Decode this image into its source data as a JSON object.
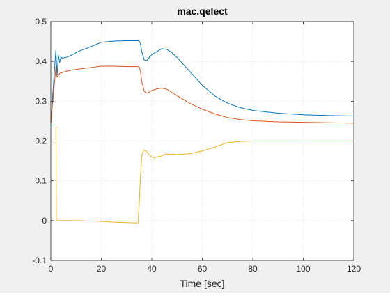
{
  "window": {
    "background": "#f0f0f0"
  },
  "chart_data": {
    "type": "line",
    "title": "mac.qelect",
    "xlabel": "Time [sec]",
    "ylabel": "",
    "xlim": [
      0,
      120
    ],
    "ylim": [
      -0.1,
      0.5
    ],
    "xticks": [
      "0",
      "20",
      "40",
      "60",
      "80",
      "100",
      "120"
    ],
    "yticks": [
      "-0.1",
      "0",
      "0.1",
      "0.2",
      "0.3",
      "0.4",
      "0.5"
    ],
    "xtick_values": [
      0,
      20,
      40,
      60,
      80,
      100,
      120
    ],
    "ytick_values": [
      -0.1,
      0,
      0.1,
      0.2,
      0.3,
      0.4,
      0.5
    ],
    "grid": true,
    "legend": "none",
    "series": [
      {
        "color": "#0072bd",
        "x": [
          0,
          0.5,
          1.0,
          1.5,
          2.0,
          2.5,
          3.0,
          3.5,
          4.0,
          4.5,
          5.0,
          6.0,
          8.0,
          10.0,
          12.0,
          15.0,
          20.0,
          25.0,
          30.0,
          34.5,
          35.0,
          35.5,
          36.0,
          37.0,
          38.0,
          39.0,
          40.0,
          42.0,
          44.0,
          46.0,
          48.0,
          50.0,
          55.0,
          60.0,
          65.0,
          70.0,
          75.0,
          80.0,
          90.0,
          100.0,
          110.0,
          120.0
        ],
        "y": [
          0.245,
          0.292,
          0.338,
          0.383,
          0.428,
          0.365,
          0.415,
          0.397,
          0.412,
          0.408,
          0.409,
          0.41,
          0.415,
          0.422,
          0.428,
          0.435,
          0.448,
          0.451,
          0.452,
          0.452,
          0.451,
          0.445,
          0.425,
          0.404,
          0.402,
          0.41,
          0.417,
          0.425,
          0.432,
          0.43,
          0.422,
          0.41,
          0.375,
          0.34,
          0.313,
          0.295,
          0.284,
          0.277,
          0.27,
          0.266,
          0.264,
          0.263
        ]
      },
      {
        "color": "#d95319",
        "x": [
          0,
          0.5,
          1.0,
          1.5,
          2.0,
          2.5,
          3.0,
          3.5,
          4.0,
          5.0,
          6.0,
          8.0,
          10.0,
          15.0,
          20.0,
          25.0,
          30.0,
          34.5,
          35.0,
          35.5,
          36.0,
          37.0,
          38.0,
          39.0,
          40.0,
          42.0,
          44.0,
          46.0,
          48.0,
          50.0,
          55.0,
          60.0,
          65.0,
          70.0,
          75.0,
          80.0,
          90.0,
          100.0,
          110.0,
          120.0
        ],
        "y": [
          0.245,
          0.28,
          0.315,
          0.35,
          0.385,
          0.36,
          0.365,
          0.37,
          0.371,
          0.373,
          0.375,
          0.378,
          0.38,
          0.384,
          0.388,
          0.388,
          0.387,
          0.387,
          0.386,
          0.376,
          0.35,
          0.325,
          0.32,
          0.323,
          0.327,
          0.331,
          0.333,
          0.33,
          0.322,
          0.314,
          0.295,
          0.28,
          0.268,
          0.259,
          0.254,
          0.251,
          0.248,
          0.247,
          0.246,
          0.245
        ]
      },
      {
        "color": "#edb120",
        "x": [
          0,
          1.0,
          1.5,
          2.0,
          2.2,
          3.0,
          5.0,
          10.0,
          15.0,
          20.0,
          25.0,
          30.0,
          34.5,
          35.0,
          35.5,
          36.0,
          36.5,
          37.0,
          38.0,
          39.0,
          40.0,
          41.0,
          42.0,
          43.0,
          44.0,
          45.0,
          46.0,
          48.0,
          50.0,
          55.0,
          60.0,
          65.0,
          70.0,
          75.0,
          80.0,
          90.0,
          100.0,
          110.0,
          120.0
        ],
        "y": [
          0.235,
          0.235,
          0.235,
          0.235,
          0.0,
          0.0,
          0.0,
          0.0,
          -0.001,
          -0.002,
          -0.004,
          -0.005,
          -0.006,
          0.04,
          0.11,
          0.16,
          0.174,
          0.177,
          0.174,
          0.165,
          0.16,
          0.158,
          0.16,
          0.161,
          0.163,
          0.166,
          0.167,
          0.167,
          0.166,
          0.168,
          0.175,
          0.185,
          0.196,
          0.199,
          0.2,
          0.2,
          0.2,
          0.2,
          0.2
        ]
      }
    ]
  }
}
